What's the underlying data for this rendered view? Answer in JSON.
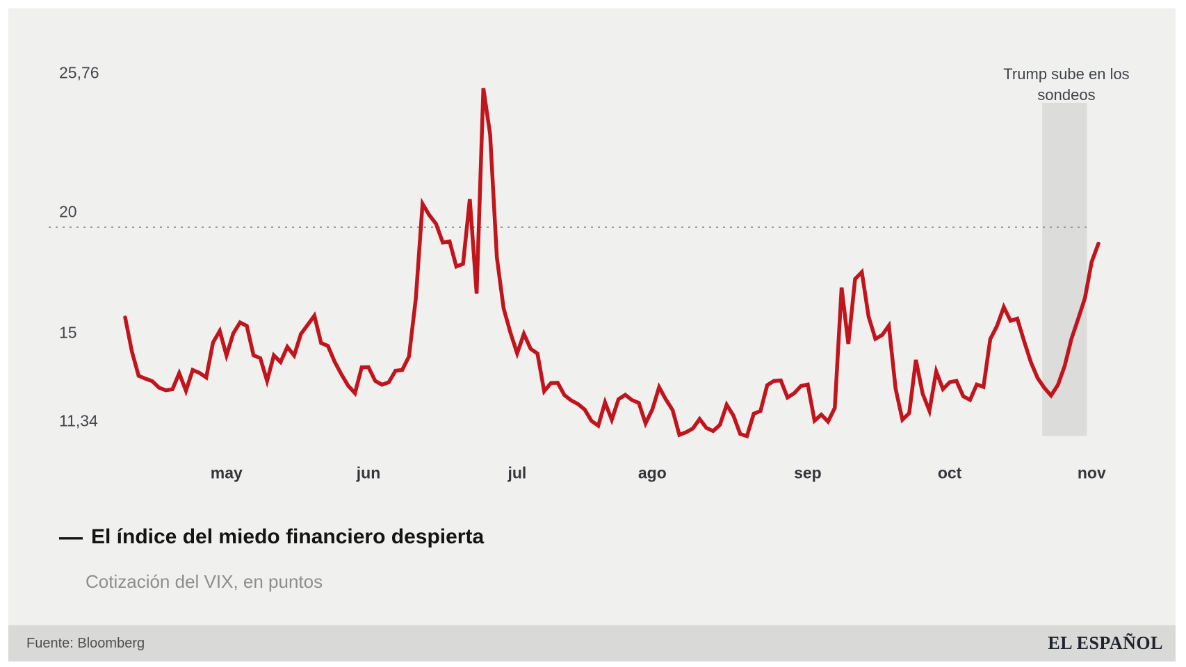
{
  "annotation": {
    "lines": [
      "Trump sube en los",
      "sondeos"
    ]
  },
  "y_axis": {
    "ticks": [
      {
        "label": "25,76",
        "value": 25.76
      },
      {
        "label": "20",
        "value": 20
      },
      {
        "label": "15",
        "value": 15
      },
      {
        "label": "11,34",
        "value": 11.34
      }
    ]
  },
  "x_axis": {
    "ticks": [
      {
        "label": "may",
        "index": 15
      },
      {
        "label": "jun",
        "index": 36
      },
      {
        "label": "jul",
        "index": 58
      },
      {
        "label": "ago",
        "index": 78
      },
      {
        "label": "sep",
        "index": 101
      },
      {
        "label": "oct",
        "index": 122
      },
      {
        "label": "nov",
        "index": 143
      }
    ]
  },
  "legend": {
    "marker": "—",
    "title": "El índice del miedo financiero despierta",
    "subtitle": "Cotización del VIX, en puntos"
  },
  "footer": {
    "source": "Fuente: Bloomberg",
    "brand": "EL ESPAÑOL"
  },
  "colors": {
    "line": "#c0151c",
    "highlight_band": "#dcdcda",
    "grid_line": "#9c9c9c",
    "card_bg": "#f0f0ee",
    "footer_bg": "#d9d9d7"
  },
  "chart_data": {
    "type": "line",
    "title": "El índice del miedo financiero despierta",
    "subtitle": "Cotización del VIX, en puntos",
    "source": "Fuente: Bloomberg",
    "ylabel": "puntos",
    "ylim": [
      11.34,
      25.76
    ],
    "y_ticks": [
      25.76,
      20,
      15,
      11.34
    ],
    "x_tick_labels": [
      "may",
      "jun",
      "jul",
      "ago",
      "sep",
      "oct",
      "nov"
    ],
    "grid": "single dashed horizontal line at y=20",
    "legend_position": "below chart",
    "highlight": {
      "label": "Trump sube en los sondeos",
      "start": "oct 21",
      "end": "oct 31"
    },
    "x": [
      "abr 11",
      "abr 12",
      "abr 13",
      "abr 14",
      "abr 15",
      "abr 18",
      "abr 19",
      "abr 20",
      "abr 21",
      "abr 22",
      "abr 25",
      "abr 26",
      "abr 27",
      "abr 28",
      "abr 29",
      "may 02",
      "may 03",
      "may 04",
      "may 05",
      "may 06",
      "may 09",
      "may 10",
      "may 11",
      "may 12",
      "may 13",
      "may 16",
      "may 17",
      "may 18",
      "may 19",
      "may 20",
      "may 23",
      "may 24",
      "may 25",
      "may 26",
      "may 27",
      "may 31",
      "jun 01",
      "jun 02",
      "jun 03",
      "jun 06",
      "jun 07",
      "jun 08",
      "jun 09",
      "jun 10",
      "jun 13",
      "jun 14",
      "jun 15",
      "jun 16",
      "jun 17",
      "jun 20",
      "jun 21",
      "jun 22",
      "jun 23",
      "jun 24",
      "jun 27",
      "jun 28",
      "jun 29",
      "jun 30",
      "jul 01",
      "jul 05",
      "jul 06",
      "jul 07",
      "jul 08",
      "jul 11",
      "jul 12",
      "jul 13",
      "jul 14",
      "jul 15",
      "jul 18",
      "jul 19",
      "jul 20",
      "jul 21",
      "jul 22",
      "jul 25",
      "jul 26",
      "jul 27",
      "jul 28",
      "jul 29",
      "ago 01",
      "ago 02",
      "ago 03",
      "ago 04",
      "ago 05",
      "ago 08",
      "ago 09",
      "ago 10",
      "ago 11",
      "ago 12",
      "ago 15",
      "ago 16",
      "ago 17",
      "ago 18",
      "ago 19",
      "ago 22",
      "ago 23",
      "ago 24",
      "ago 25",
      "ago 26",
      "ago 29",
      "ago 30",
      "ago 31",
      "sep 01",
      "sep 02",
      "sep 06",
      "sep 07",
      "sep 08",
      "sep 09",
      "sep 12",
      "sep 13",
      "sep 14",
      "sep 15",
      "sep 16",
      "sep 19",
      "sep 20",
      "sep 21",
      "sep 22",
      "sep 23",
      "sep 26",
      "sep 27",
      "sep 28",
      "sep 29",
      "sep 30",
      "oct 03",
      "oct 04",
      "oct 05",
      "oct 06",
      "oct 07",
      "oct 10",
      "oct 11",
      "oct 12",
      "oct 13",
      "oct 14",
      "oct 17",
      "oct 18",
      "oct 19",
      "oct 20",
      "oct 21",
      "oct 24",
      "oct 25",
      "oct 26",
      "oct 27",
      "oct 28",
      "oct 31",
      "nov 01",
      "nov 02"
    ],
    "values": [
      16.26,
      14.85,
      13.84,
      13.72,
      13.62,
      13.35,
      13.24,
      13.28,
      13.95,
      13.22,
      14.08,
      13.96,
      13.77,
      15.22,
      15.7,
      14.68,
      15.6,
      16.05,
      15.91,
      14.69,
      14.57,
      13.63,
      14.69,
      14.41,
      15.04,
      14.68,
      15.57,
      15.95,
      16.33,
      15.2,
      15.08,
      14.42,
      13.9,
      13.43,
      13.12,
      14.19,
      14.2,
      13.63,
      13.47,
      13.57,
      14.05,
      14.08,
      14.64,
      17.03,
      20.97,
      20.5,
      20.14,
      19.37,
      19.41,
      18.37,
      18.48,
      21.17,
      17.25,
      25.76,
      23.85,
      18.75,
      16.64,
      15.63,
      14.77,
      15.58,
      14.96,
      14.76,
      13.2,
      13.54,
      13.55,
      13.04,
      12.82,
      12.67,
      12.44,
      11.97,
      11.77,
      12.74,
      12.02,
      12.87,
      13.05,
      12.83,
      12.72,
      11.87,
      12.44,
      13.37,
      12.86,
      12.42,
      11.39,
      11.5,
      11.66,
      12.05,
      11.68,
      11.55,
      11.81,
      12.64,
      12.19,
      11.43,
      11.34,
      12.27,
      12.38,
      13.45,
      13.63,
      13.65,
      12.94,
      13.12,
      13.42,
      13.48,
      11.98,
      12.23,
      11.94,
      12.51,
      17.5,
      15.16,
      17.85,
      18.14,
      16.3,
      15.37,
      15.53,
      15.92,
      13.3,
      12.02,
      12.29,
      14.5,
      13.1,
      12.39,
      14.02,
      13.29,
      13.57,
      13.63,
      12.99,
      12.84,
      13.48,
      13.38,
      15.36,
      15.91,
      16.69,
      16.12,
      16.21,
      15.28,
      14.41,
      13.75,
      13.34,
      13.02,
      13.46,
      14.24,
      15.36,
      16.19,
      17.06,
      18.56,
      19.32
    ]
  }
}
